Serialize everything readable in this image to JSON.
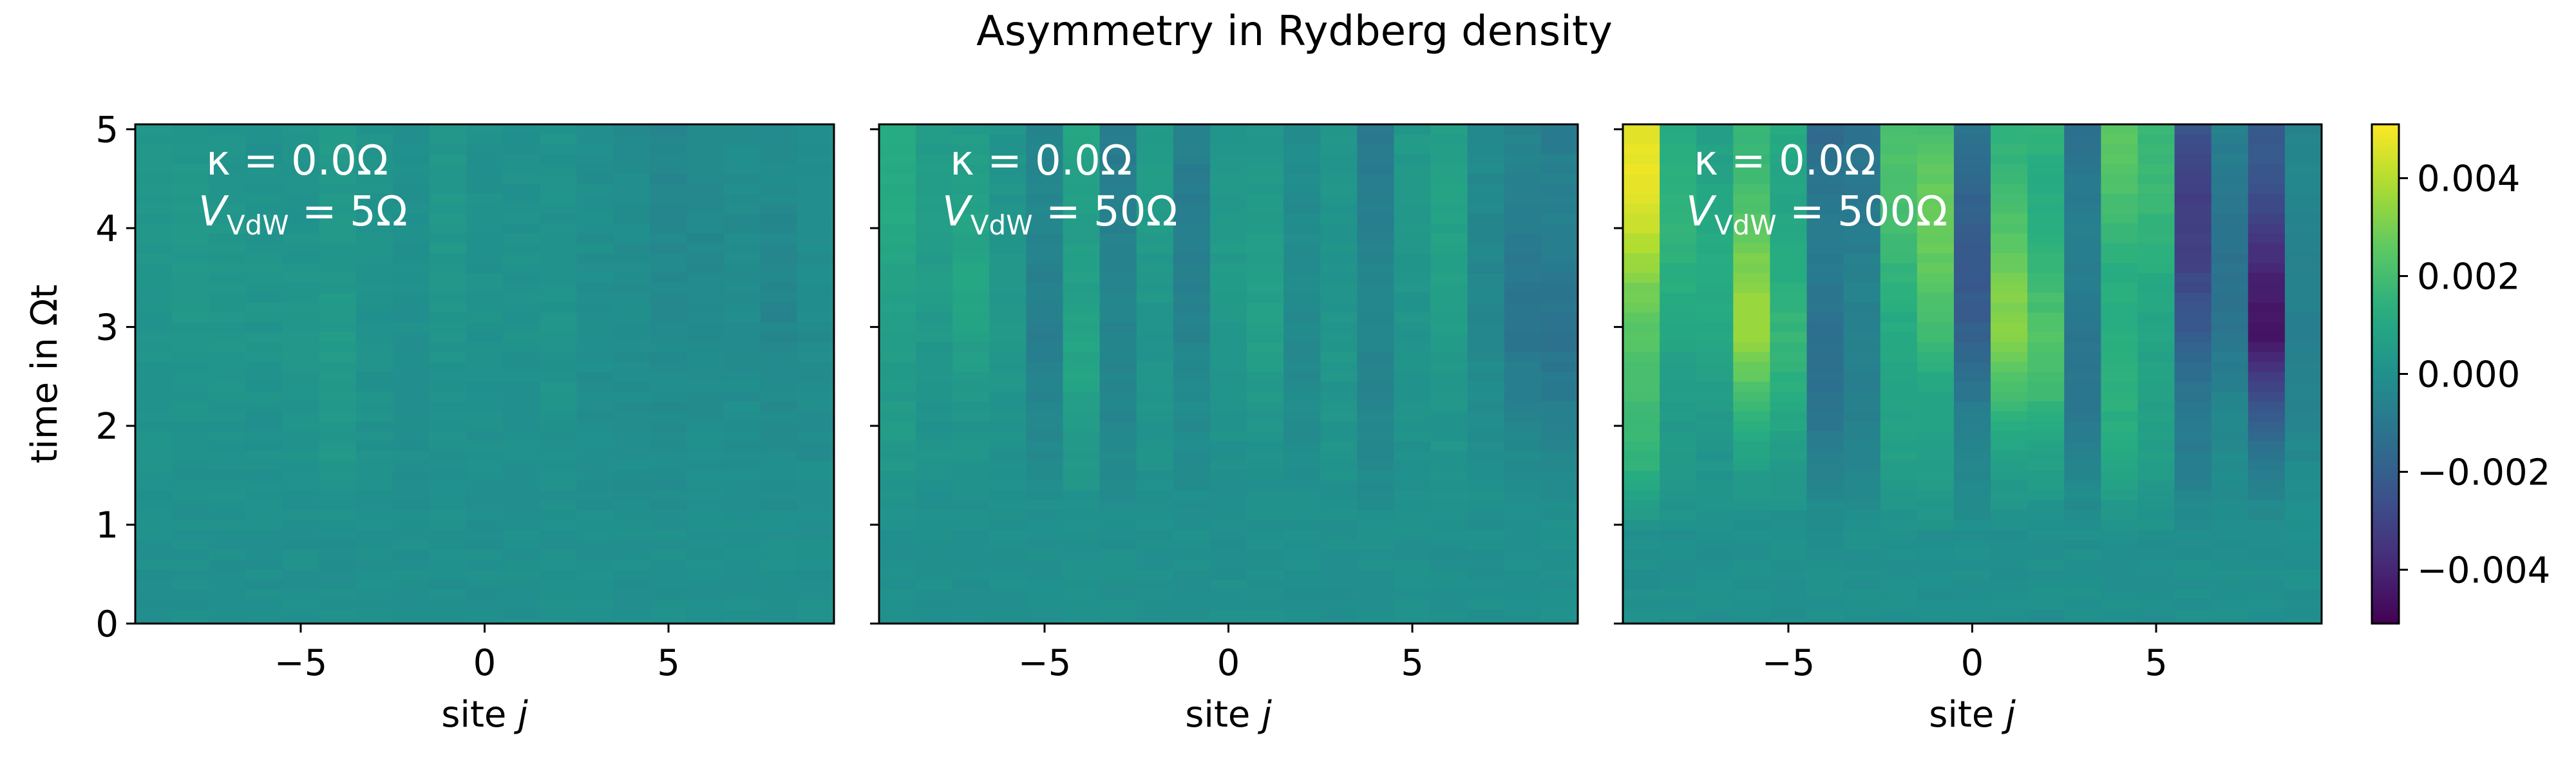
{
  "chart_data": {
    "type": "heatmap",
    "title": "Asymmetry in Rydberg density",
    "colormap": "viridis",
    "x": [
      -9,
      -8,
      -7,
      -6,
      -5,
      -4,
      -3,
      -2,
      -1,
      0,
      1,
      2,
      3,
      4,
      5,
      6,
      7,
      8,
      9
    ],
    "xlim": [
      -9.5,
      9.5
    ],
    "xticks": [
      -5,
      0,
      5
    ],
    "xtick_labels": [
      "−5",
      "0",
      "5"
    ],
    "xlabel": {
      "text": "site ",
      "var": "j"
    },
    "ylim": [
      0,
      5.05
    ],
    "yticks": [
      0,
      1,
      2,
      3,
      4,
      5
    ],
    "ytick_labels": [
      "0",
      "1",
      "2",
      "3",
      "4",
      "5"
    ],
    "ylabel": {
      "text": "time in ",
      "var": "Ωt"
    },
    "time_rows": 51,
    "colorbar": {
      "range": [
        -0.0051,
        0.0051
      ],
      "ticks": [
        0.004,
        0.002,
        0.0,
        -0.002,
        -0.004
      ],
      "tick_labels": [
        "0.004",
        "0.002",
        "0.000",
        "−0.002",
        "−0.004"
      ]
    },
    "panels": [
      {
        "kappa_label": "κ = 0.0Ω",
        "v_symbol": "V",
        "v_sub": "VdW",
        "v_value": " = 5Ω",
        "onset_time": 0.8,
        "amplitudes": [
          0.0003,
          0.0004,
          0.0003,
          0.0002,
          0.0003,
          0.0006,
          0.0002,
          0.0,
          0.0003,
          0.0001,
          0.0001,
          0.0002,
          -0.0001,
          -0.0002,
          -0.0004,
          -0.0003,
          -0.0002,
          -0.0004,
          -0.0002
        ]
      },
      {
        "kappa_label": "κ = 0.0Ω",
        "v_symbol": "V",
        "v_sub": "VdW",
        "v_value": " = 50Ω",
        "onset_time": 1.0,
        "amplitudes": [
          0.0012,
          0.0006,
          0.0009,
          0.0004,
          -0.0008,
          0.0012,
          -0.0009,
          0.0005,
          -0.0008,
          0.0004,
          0.0007,
          -0.0003,
          0.0004,
          -0.0009,
          0.0004,
          0.0008,
          -0.0004,
          -0.0011,
          -0.0013
        ]
      },
      {
        "kappa_label": "κ = 0.0Ω",
        "v_symbol": "V",
        "v_sub": "VdW",
        "v_value": " = 500Ω",
        "onset_time": 0.9,
        "amplitudes": [
          0.0048,
          0.0015,
          0.0012,
          0.0035,
          0.0018,
          -0.0018,
          -0.0012,
          0.0022,
          0.0028,
          -0.0022,
          0.0032,
          0.0025,
          -0.0015,
          0.0026,
          0.0018,
          -0.0032,
          -0.0012,
          -0.0045,
          -0.0008
        ]
      }
    ]
  }
}
